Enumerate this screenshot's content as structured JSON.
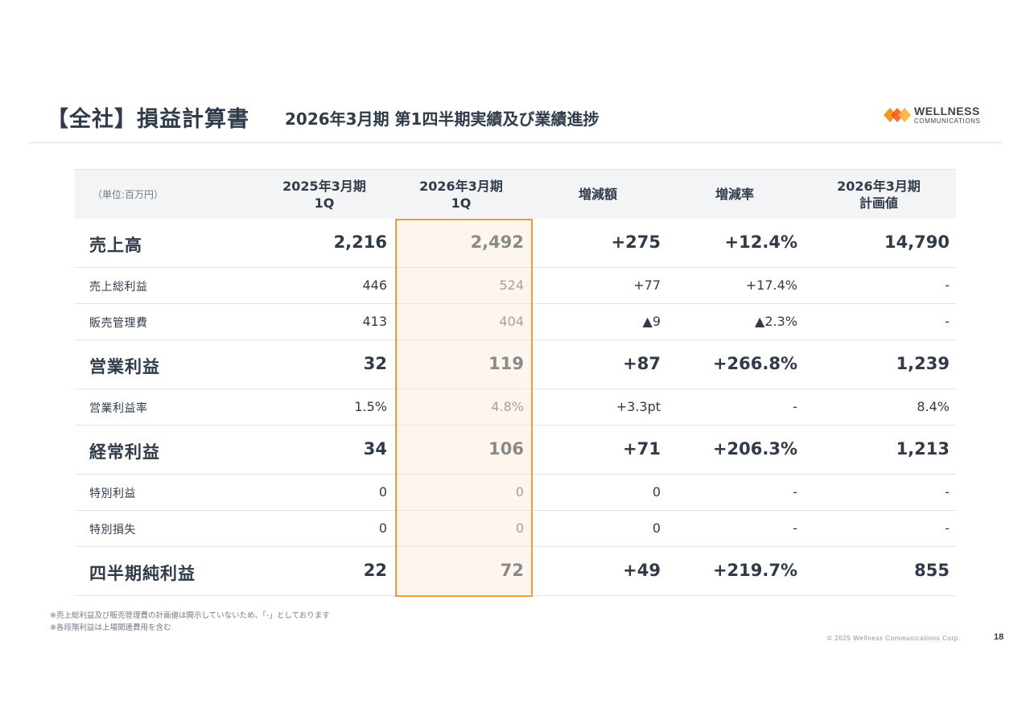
{
  "header": {
    "title": "【全社】損益計算書",
    "subtitle": "2026年3月期 第1四半期実績及び業績進捗",
    "logo_word": "WELLNESS",
    "logo_sub": "COMMUNICATIONS"
  },
  "table": {
    "unit": "（単位:百万円）",
    "col1": {
      "line1": "2025年3月期",
      "line2": "1Q"
    },
    "col2": {
      "line1": "2026年3月期",
      "line2": "1Q"
    },
    "col3": "増減額",
    "col4": "増減率",
    "col5": {
      "line1": "2026年3月期",
      "line2": "計画値"
    },
    "rows": [
      {
        "label": "売上高",
        "v1": "2,216",
        "v2": "2,492",
        "v3": "+275",
        "v4": "+12.4%",
        "v5": "14,790"
      },
      {
        "label": "売上総利益",
        "v1": "446",
        "v2": "524",
        "v3": "+77",
        "v4": "+17.4%",
        "v5": "-"
      },
      {
        "label": "販売管理費",
        "v1": "413",
        "v2": "404",
        "v3": "▲9",
        "v4": "▲2.3%",
        "v5": "-"
      },
      {
        "label": "営業利益",
        "v1": "32",
        "v2": "119",
        "v3": "+87",
        "v4": "+266.8%",
        "v5": "1,239"
      },
      {
        "label": "営業利益率",
        "v1": "1.5%",
        "v2": "4.8%",
        "v3": "+3.3pt",
        "v4": "-",
        "v5": "8.4%"
      },
      {
        "label": "経常利益",
        "v1": "34",
        "v2": "106",
        "v3": "+71",
        "v4": "+206.3%",
        "v5": "1,213"
      },
      {
        "label": "特別利益",
        "v1": "0",
        "v2": "0",
        "v3": "0",
        "v4": "-",
        "v5": "-"
      },
      {
        "label": "特別損失",
        "v1": "0",
        "v2": "0",
        "v3": "0",
        "v4": "-",
        "v5": "-"
      },
      {
        "label": "四半期純利益",
        "v1": "22",
        "v2": "72",
        "v3": "+49",
        "v4": "+219.7%",
        "v5": "855"
      }
    ]
  },
  "notes": {
    "line1": "※売上総利益及び販売管理費の計画値は開示していないため、「-」としております",
    "line2": "※各段階利益は上場関連費用を含む"
  },
  "footer": {
    "copyright": "© 2025 Wellness Communications Corp.",
    "page": "18"
  },
  "colors": {
    "accent": "#f19a38",
    "highlight_fill": "#fdf3e8",
    "text": "#2f3b4a"
  }
}
